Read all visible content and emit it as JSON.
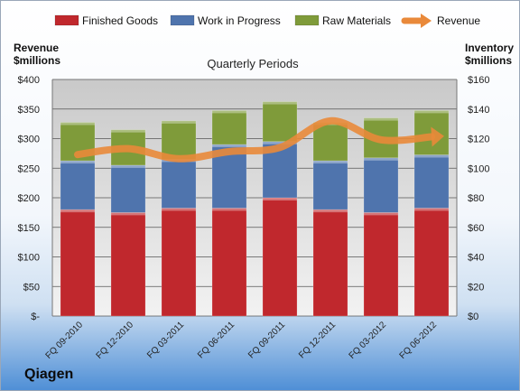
{
  "company": "Qiagen",
  "chart_data": {
    "type": "bar",
    "stacked": true,
    "subtitle": "Quarterly Periods",
    "left_axis": {
      "label_line1": "Revenue",
      "label_line2": "$millions",
      "ylim": [
        0,
        400
      ],
      "ticks": [
        0,
        50,
        100,
        150,
        200,
        250,
        300,
        350,
        400
      ],
      "tick_labels": [
        "$-",
        "$50",
        "$100",
        "$150",
        "$200",
        "$250",
        "$300",
        "$350",
        "$400"
      ]
    },
    "right_axis": {
      "label_line1": "Inventory",
      "label_line2": "$millions",
      "ylim": [
        0,
        160
      ],
      "ticks": [
        0,
        20,
        40,
        60,
        80,
        100,
        120,
        140,
        160
      ],
      "tick_labels": [
        "$0",
        "$20",
        "$40",
        "$60",
        "$80",
        "$100",
        "$120",
        "$140",
        "$160"
      ]
    },
    "categories": [
      "FQ 09-2010",
      "FQ 12-2010",
      "FQ 03-2011",
      "FQ 06-2011",
      "FQ 09-2011",
      "FQ 12-2011",
      "FQ 03-2012",
      "FQ 06-2012"
    ],
    "series": [
      {
        "name": "Finished Goods",
        "axis": "right",
        "color": "#c0282d",
        "values": [
          72,
          70,
          73,
          73,
          80,
          72,
          70,
          73
        ]
      },
      {
        "name": "Work in Progress",
        "axis": "right",
        "color": "#4f74ad",
        "values": [
          33,
          32,
          33,
          43,
          38,
          33,
          37,
          36
        ]
      },
      {
        "name": "Raw Materials",
        "axis": "right",
        "color": "#7f9b3a",
        "values": [
          26,
          24,
          26,
          23,
          27,
          26,
          27,
          30
        ]
      }
    ],
    "line": {
      "name": "Revenue",
      "axis": "left",
      "color": "#e9893a",
      "values": [
        273,
        283,
        266,
        278,
        285,
        330,
        298,
        303
      ]
    },
    "grid": true,
    "legend": "top"
  }
}
